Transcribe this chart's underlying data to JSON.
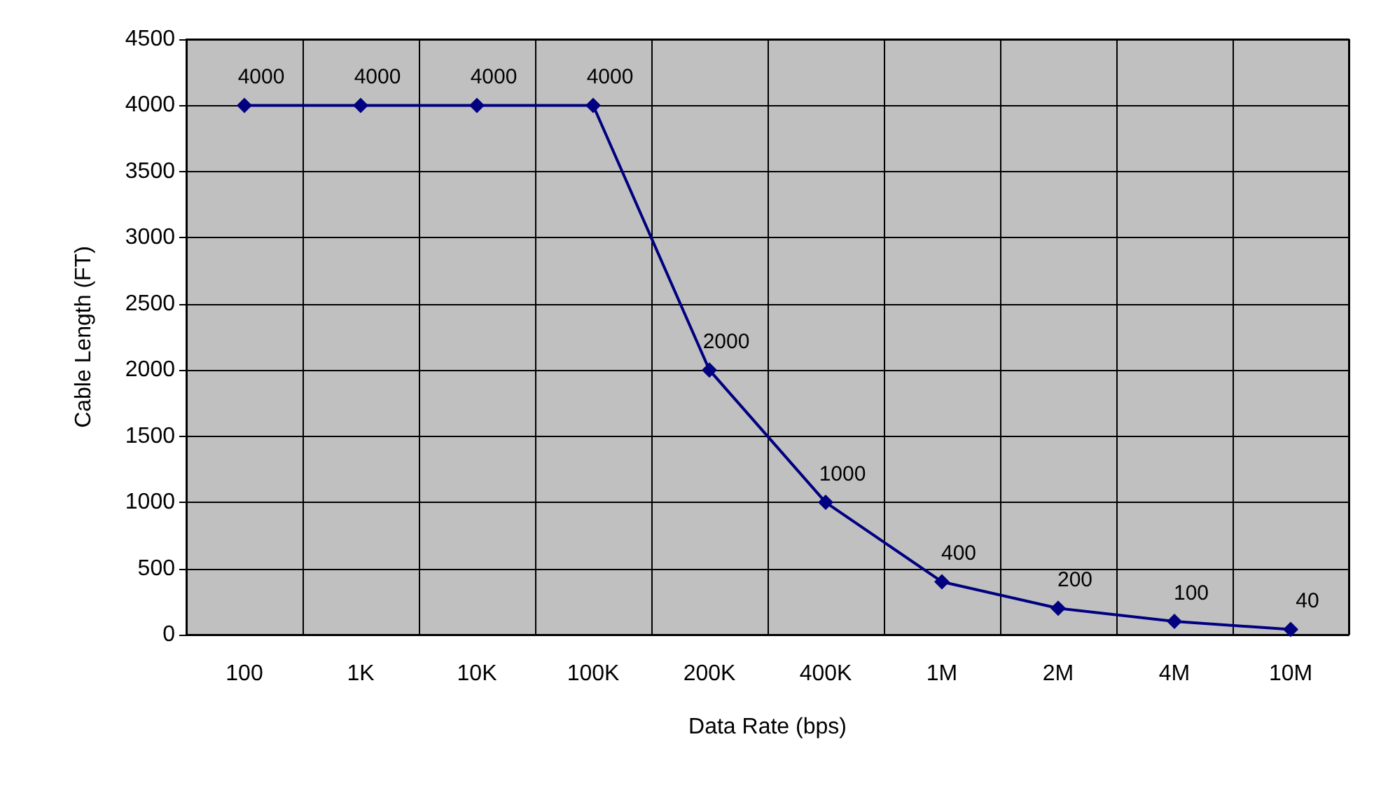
{
  "chart_data": {
    "type": "line",
    "xlabel": "Data Rate (bps)",
    "ylabel": "Cable Length (FT)",
    "categories": [
      "100",
      "1K",
      "10K",
      "100K",
      "200K",
      "400K",
      "1M",
      "2M",
      "4M",
      "10M"
    ],
    "series": [
      {
        "color": "#000080",
        "values": [
          4000,
          4000,
          4000,
          4000,
          2000,
          1000,
          400,
          200,
          100,
          40
        ]
      }
    ],
    "ylim": [
      0,
      4500
    ],
    "yticks": [
      0,
      500,
      1000,
      1500,
      2000,
      2500,
      3000,
      3500,
      4000,
      4500
    ],
    "grid": true,
    "marker": "diamond",
    "line_style": "solid",
    "data_labels": true
  }
}
